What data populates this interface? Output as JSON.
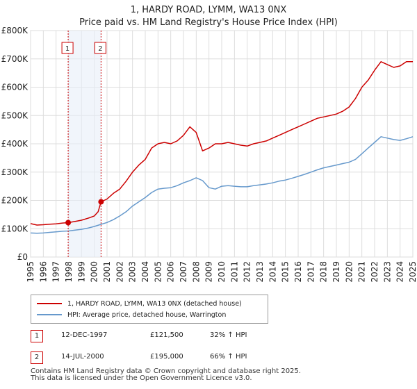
{
  "title": {
    "line1": "1, HARDY ROAD, LYMM, WA13 0NX",
    "line2": "Price paid vs. HM Land Registry's House Price Index (HPI)"
  },
  "colors": {
    "property": "#cc0000",
    "hpi": "#6699cc",
    "grid": "#dddddd",
    "sale_marker": "#cc0000",
    "highlight": "#e8eef8"
  },
  "chart_data": {
    "type": "line",
    "title": "Price paid vs. HM Land Registry's House Price Index (HPI)",
    "xlim": [
      1995,
      2025
    ],
    "ylim": [
      0,
      800000
    ],
    "x_ticks": [
      "1995",
      "1996",
      "1997",
      "1998",
      "1999",
      "2000",
      "2001",
      "2002",
      "2003",
      "2004",
      "2005",
      "2006",
      "2007",
      "2008",
      "2009",
      "2010",
      "2011",
      "2012",
      "2013",
      "2014",
      "2015",
      "2016",
      "2017",
      "2018",
      "2019",
      "2020",
      "2021",
      "2022",
      "2023",
      "2024",
      "2025"
    ],
    "y_ticks": [
      {
        "value": 0,
        "label": "£0"
      },
      {
        "value": 100000,
        "label": "£100K"
      },
      {
        "value": 200000,
        "label": "£200K"
      },
      {
        "value": 300000,
        "label": "£300K"
      },
      {
        "value": 400000,
        "label": "£400K"
      },
      {
        "value": 500000,
        "label": "£500K"
      },
      {
        "value": 600000,
        "label": "£600K"
      },
      {
        "value": 700000,
        "label": "£700K"
      },
      {
        "value": 800000,
        "label": "£800K"
      }
    ],
    "series": [
      {
        "name": "1, HARDY ROAD, LYMM, WA13 0NX (detached house)",
        "color": "#cc0000",
        "x": [
          1995.0,
          1995.5,
          1996.0,
          1996.5,
          1997.0,
          1997.5,
          1997.95,
          1998.5,
          1999.0,
          1999.5,
          2000.0,
          2000.3,
          2000.53,
          2001.0,
          2001.5,
          2002.0,
          2002.5,
          2003.0,
          2003.5,
          2004.0,
          2004.5,
          2005.0,
          2005.5,
          2006.0,
          2006.5,
          2007.0,
          2007.5,
          2008.0,
          2008.5,
          2009.0,
          2009.5,
          2010.0,
          2010.5,
          2011.0,
          2011.5,
          2012.0,
          2012.5,
          2013.0,
          2013.5,
          2014.0,
          2014.5,
          2015.0,
          2015.5,
          2016.0,
          2016.5,
          2017.0,
          2017.5,
          2018.0,
          2018.5,
          2019.0,
          2019.5,
          2020.0,
          2020.5,
          2021.0,
          2021.5,
          2022.0,
          2022.5,
          2023.0,
          2023.5,
          2024.0,
          2024.5,
          2025.0
        ],
        "y": [
          118000,
          113000,
          114000,
          116000,
          117000,
          120000,
          121500,
          126000,
          130000,
          137000,
          145000,
          160000,
          195000,
          205000,
          225000,
          240000,
          268000,
          300000,
          325000,
          345000,
          385000,
          400000,
          405000,
          400000,
          410000,
          430000,
          460000,
          440000,
          375000,
          385000,
          400000,
          400000,
          405000,
          400000,
          395000,
          392000,
          400000,
          405000,
          410000,
          420000,
          430000,
          440000,
          450000,
          460000,
          470000,
          480000,
          490000,
          495000,
          500000,
          505000,
          515000,
          530000,
          560000,
          600000,
          625000,
          660000,
          690000,
          680000,
          670000,
          675000,
          690000,
          690000
        ]
      },
      {
        "name": "HPI: Average price, detached house, Warrington",
        "color": "#6699cc",
        "x": [
          1995.0,
          1995.5,
          1996.0,
          1996.5,
          1997.0,
          1997.5,
          1998.0,
          1998.5,
          1999.0,
          1999.5,
          2000.0,
          2000.5,
          2001.0,
          2001.5,
          2002.0,
          2002.5,
          2003.0,
          2003.5,
          2004.0,
          2004.5,
          2005.0,
          2005.5,
          2006.0,
          2006.5,
          2007.0,
          2007.5,
          2008.0,
          2008.5,
          2009.0,
          2009.5,
          2010.0,
          2010.5,
          2011.0,
          2011.5,
          2012.0,
          2012.5,
          2013.0,
          2013.5,
          2014.0,
          2014.5,
          2015.0,
          2015.5,
          2016.0,
          2016.5,
          2017.0,
          2017.5,
          2018.0,
          2018.5,
          2019.0,
          2019.5,
          2020.0,
          2020.5,
          2021.0,
          2021.5,
          2022.0,
          2022.5,
          2023.0,
          2023.5,
          2024.0,
          2024.5,
          2025.0
        ],
        "y": [
          85000,
          84000,
          85000,
          87000,
          89000,
          91000,
          92000,
          95000,
          98000,
          102000,
          108000,
          115000,
          122000,
          132000,
          145000,
          160000,
          180000,
          195000,
          210000,
          228000,
          240000,
          243000,
          245000,
          252000,
          262000,
          270000,
          280000,
          270000,
          245000,
          240000,
          250000,
          252000,
          250000,
          248000,
          248000,
          252000,
          255000,
          258000,
          262000,
          268000,
          272000,
          278000,
          285000,
          292000,
          300000,
          308000,
          315000,
          320000,
          325000,
          330000,
          335000,
          345000,
          365000,
          385000,
          405000,
          425000,
          420000,
          415000,
          412000,
          418000,
          425000
        ]
      }
    ],
    "sales": [
      {
        "id": "1",
        "x": 1997.95,
        "y": 121500
      },
      {
        "id": "2",
        "x": 2000.53,
        "y": 195000
      }
    ]
  },
  "legend": {
    "property_label": "1, HARDY ROAD, LYMM, WA13 0NX (detached house)",
    "hpi_label": "HPI: Average price, detached house, Warrington"
  },
  "sales_table": [
    {
      "num": "1",
      "date": "12-DEC-1997",
      "price": "£121,500",
      "hpi": "32% ↑ HPI"
    },
    {
      "num": "2",
      "date": "14-JUL-2000",
      "price": "£195,000",
      "hpi": "66% ↑ HPI"
    }
  ],
  "footer": {
    "line1": "Contains HM Land Registry data © Crown copyright and database right 2025.",
    "line2": "This data is licensed under the Open Government Licence v3.0."
  }
}
